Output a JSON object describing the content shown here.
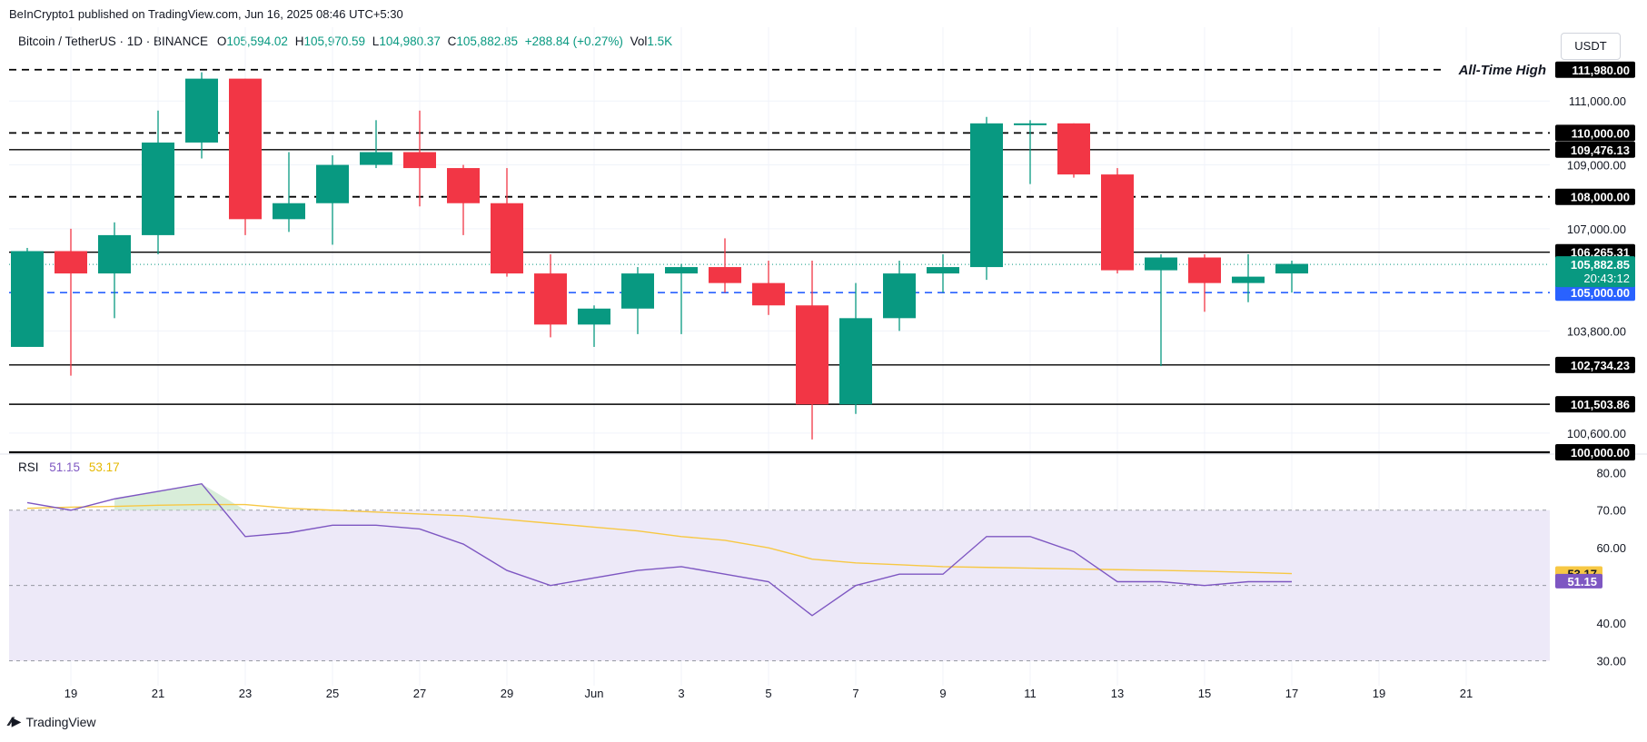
{
  "header": {
    "published": "BeInCrypto1 published on TradingView.com, Jun 16, 2025 08:46 UTC+5:30",
    "symbol": "Bitcoin / TetherUS · 1D · BINANCE",
    "o_label": "O",
    "o_val": "105,594.02",
    "h_label": "H",
    "h_val": "105,970.59",
    "l_label": "L",
    "l_val": "104,980.37",
    "c_label": "C",
    "c_val": "105,882.85",
    "change": "+288.84 (+0.27%)",
    "vol_label": "Vol",
    "vol_val": "1.5K",
    "currency": "USDT"
  },
  "footer": {
    "brand": "TradingView"
  },
  "colors": {
    "up": "#089981",
    "down": "#f23645",
    "rsi": "#7e57c2",
    "rsi_ma": "#f7c844",
    "band": "#ede9f8",
    "blue_dash": "#2962ff"
  },
  "chart_data": [
    {
      "type": "candlestick",
      "title": "Bitcoin / TetherUS · 1D · BINANCE",
      "ylim": [
        100000,
        112400
      ],
      "x_tick_labels": [
        "19",
        "21",
        "23",
        "25",
        "27",
        "29",
        "Jun",
        "3",
        "5",
        "7",
        "9",
        "11",
        "13",
        "15",
        "17",
        "19",
        "21"
      ],
      "x_tick_index": [
        1,
        3,
        5,
        7,
        9,
        11,
        13,
        15,
        17,
        19,
        21,
        23,
        25,
        27,
        29,
        31,
        33
      ],
      "y_tick_labels": [
        "111,000.00",
        "109,000.00",
        "107,000.00",
        "103,800.00",
        "100,600.00"
      ],
      "y_tick_values": [
        111000,
        109000,
        107000,
        103800,
        100600
      ],
      "candles": [
        {
          "o": 103300,
          "h": 106400,
          "l": 103300,
          "c": 106300
        },
        {
          "o": 106300,
          "h": 107000,
          "l": 102400,
          "c": 105600
        },
        {
          "o": 105600,
          "h": 107200,
          "l": 104200,
          "c": 106800
        },
        {
          "o": 106800,
          "h": 110700,
          "l": 106200,
          "c": 109700
        },
        {
          "o": 109700,
          "h": 111900,
          "l": 109200,
          "c": 111700
        },
        {
          "o": 111700,
          "h": 111700,
          "l": 106800,
          "c": 107300
        },
        {
          "o": 107300,
          "h": 109400,
          "l": 106900,
          "c": 107800
        },
        {
          "o": 107800,
          "h": 109300,
          "l": 106500,
          "c": 109000
        },
        {
          "o": 109000,
          "h": 110400,
          "l": 108900,
          "c": 109400
        },
        {
          "o": 109400,
          "h": 110700,
          "l": 107700,
          "c": 108900
        },
        {
          "o": 108900,
          "h": 109000,
          "l": 106800,
          "c": 107800
        },
        {
          "o": 107800,
          "h": 108900,
          "l": 105500,
          "c": 105600
        },
        {
          "o": 105600,
          "h": 106200,
          "l": 103600,
          "c": 104000
        },
        {
          "o": 104000,
          "h": 104600,
          "l": 103300,
          "c": 104500
        },
        {
          "o": 104500,
          "h": 105800,
          "l": 103700,
          "c": 105600
        },
        {
          "o": 105600,
          "h": 105900,
          "l": 103700,
          "c": 105800
        },
        {
          "o": 105800,
          "h": 106700,
          "l": 105000,
          "c": 105300
        },
        {
          "o": 105300,
          "h": 106000,
          "l": 104300,
          "c": 104600
        },
        {
          "o": 104600,
          "h": 106000,
          "l": 100400,
          "c": 101500
        },
        {
          "o": 101500,
          "h": 105300,
          "l": 101200,
          "c": 104200
        },
        {
          "o": 104200,
          "h": 106000,
          "l": 103800,
          "c": 105600
        },
        {
          "o": 105600,
          "h": 106200,
          "l": 105000,
          "c": 105800
        },
        {
          "o": 105800,
          "h": 110500,
          "l": 105400,
          "c": 110300
        },
        {
          "o": 110300,
          "h": 110400,
          "l": 108400,
          "c": 110300
        },
        {
          "o": 110300,
          "h": 110300,
          "l": 108600,
          "c": 108700
        },
        {
          "o": 108700,
          "h": 108900,
          "l": 105600,
          "c": 105700
        },
        {
          "o": 105700,
          "h": 106200,
          "l": 102700,
          "c": 106100
        },
        {
          "o": 106100,
          "h": 106200,
          "l": 104400,
          "c": 105300
        },
        {
          "o": 105300,
          "h": 106200,
          "l": 104700,
          "c": 105500
        },
        {
          "o": 105600,
          "h": 106000,
          "l": 105000,
          "c": 105900
        }
      ],
      "levels": [
        {
          "value": 111980,
          "style": "dash",
          "label": "111,980.00",
          "note": "All-Time High"
        },
        {
          "value": 110000,
          "style": "dash",
          "label": "110,000.00",
          "note": ""
        },
        {
          "value": 109476.13,
          "style": "solid",
          "label": "109,476.13",
          "note": ""
        },
        {
          "value": 108000,
          "style": "dash",
          "label": "108,000.00",
          "note": ""
        },
        {
          "value": 106265.31,
          "style": "solid",
          "label": "106,265.31",
          "note": ""
        },
        {
          "value": 105000,
          "style": "bluedash",
          "label": "105,000.00",
          "note": ""
        },
        {
          "value": 102734.23,
          "style": "solid",
          "label": "102,734.23",
          "note": ""
        },
        {
          "value": 101503.86,
          "style": "solid",
          "label": "101,503.86",
          "note": ""
        },
        {
          "value": 100000,
          "style": "thick",
          "label": "100,000.00",
          "note": ""
        }
      ],
      "last_price": {
        "value": 105882.85,
        "label": "105,882.85",
        "countdown": "20:43:12"
      }
    },
    {
      "type": "line",
      "title": "RSI",
      "rsi_value": "51.15",
      "ma_value": "53.17",
      "ylim": [
        27,
        82
      ],
      "y_tick_labels": [
        "80.00",
        "70.00",
        "60.00",
        "40.00",
        "30.00"
      ],
      "y_tick_values": [
        80,
        70,
        60,
        40,
        30
      ],
      "band": [
        30,
        70
      ],
      "midline": 50,
      "series": [
        {
          "name": "RSI",
          "values": [
            72,
            70,
            73,
            75,
            77,
            63,
            64,
            66,
            66,
            65,
            61,
            54,
            50,
            52,
            54,
            55,
            53,
            51,
            42,
            50,
            53,
            53,
            63,
            63,
            59,
            51,
            51,
            50,
            51,
            51
          ]
        },
        {
          "name": "RSI-based MA",
          "values": [
            70.5,
            70.8,
            71,
            71.3,
            71.5,
            71.5,
            70.5,
            70,
            69.5,
            69,
            68.5,
            67.5,
            66.5,
            65.5,
            64.5,
            63,
            62,
            60,
            57,
            56,
            55.5,
            55,
            54.8,
            54.6,
            54.4,
            54.2,
            54,
            53.8,
            53.5,
            53.17
          ]
        }
      ]
    }
  ]
}
